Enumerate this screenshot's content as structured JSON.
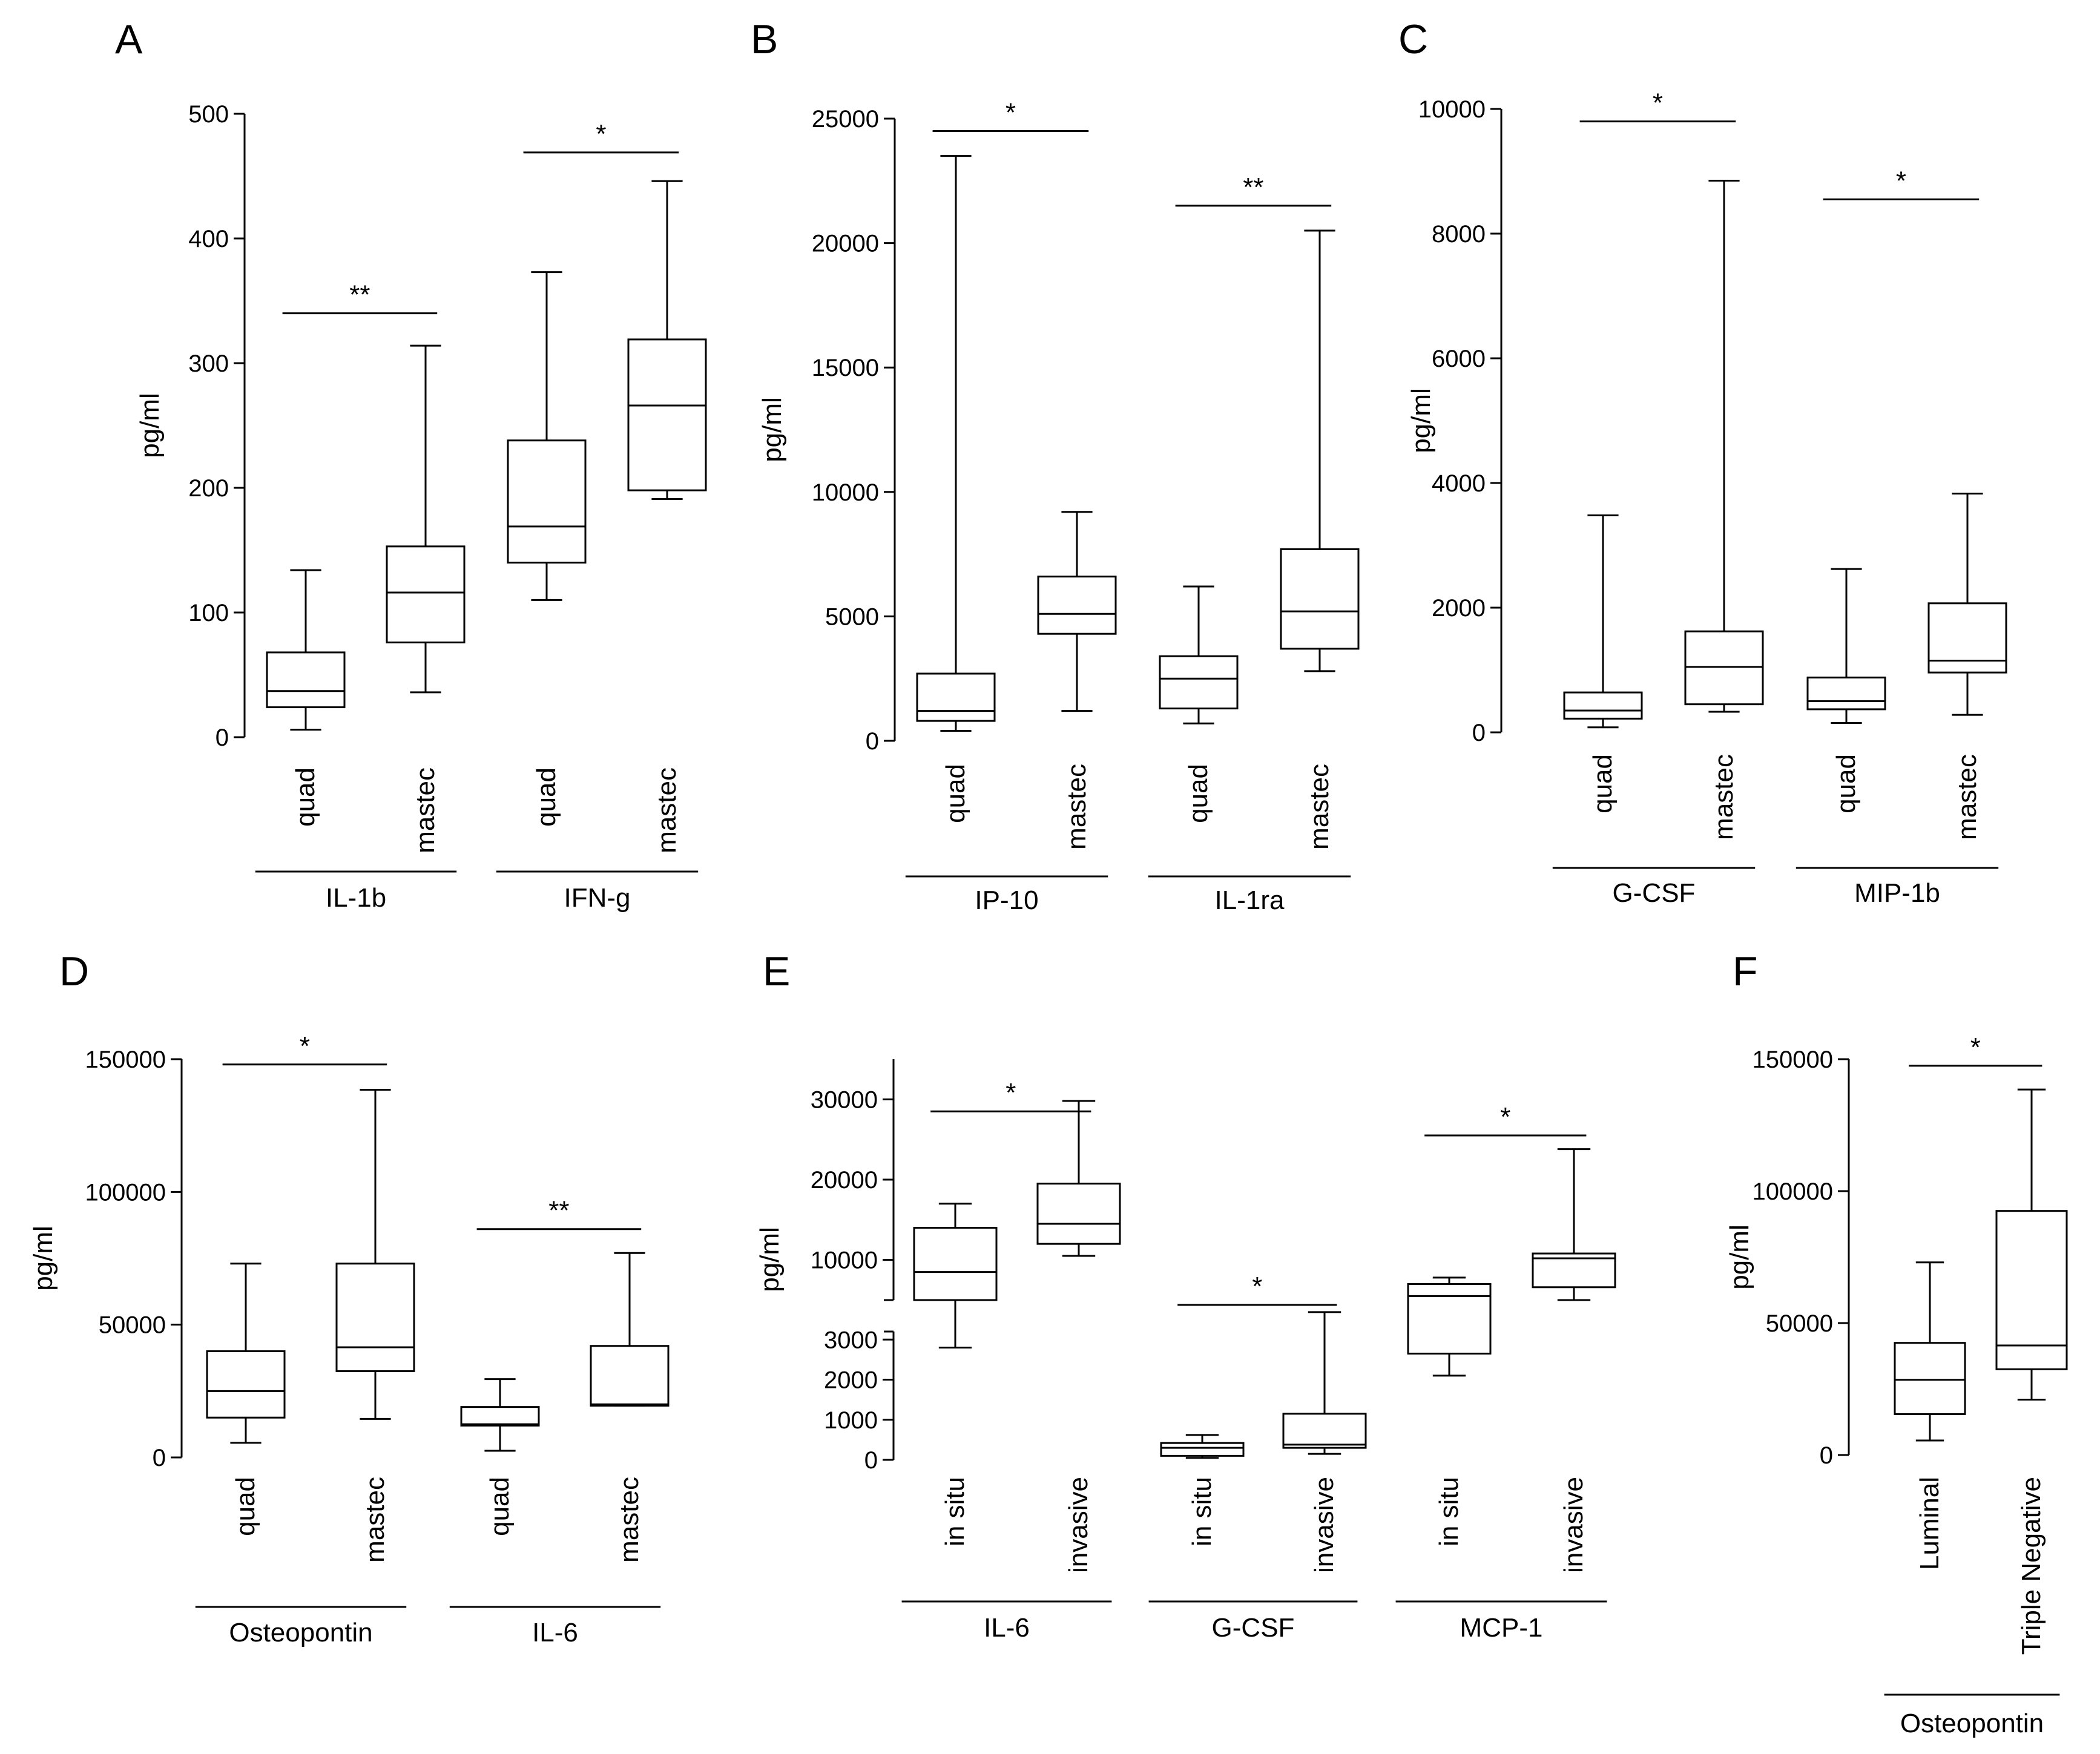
{
  "chart_data": [
    {
      "panel": "A",
      "type": "box",
      "ylabel": "pg/ml",
      "ylim": [
        0,
        500
      ],
      "yticks": [
        "0",
        "100",
        "200",
        "300",
        "400",
        "500"
      ],
      "break": false,
      "boxes": [
        {
          "label": "quad",
          "min": 6,
          "q1": 24,
          "median": 37,
          "q3": 68,
          "max": 134
        },
        {
          "label": "mastec",
          "min": 36,
          "q1": 76,
          "median": 116,
          "q3": 153,
          "max": 314
        },
        {
          "label": "quad",
          "min": 110,
          "q1": 140,
          "median": 169,
          "q3": 238,
          "max": 373
        },
        {
          "label": "mastec",
          "min": 191,
          "q1": 198,
          "median": 266,
          "q3": 319,
          "max": 446
        }
      ],
      "groups": [
        {
          "label": "IL-1b",
          "from": 0,
          "to": 1
        },
        {
          "label": "IFN-g",
          "from": 2,
          "to": 3
        }
      ],
      "significance": [
        {
          "from": 0,
          "to": 1,
          "text": "**",
          "level": 340
        },
        {
          "from": 2,
          "to": 3,
          "text": "*",
          "level": 469
        }
      ]
    },
    {
      "panel": "B",
      "type": "box",
      "ylabel": "pg/ml",
      "ylim": [
        0,
        25000
      ],
      "yticks": [
        "0",
        "5000",
        "10000",
        "15000",
        "20000",
        "25000"
      ],
      "break": false,
      "boxes": [
        {
          "label": "quad",
          "min": 400,
          "q1": 800,
          "median": 1200,
          "q3": 2700,
          "max": 23500
        },
        {
          "label": "mastec",
          "min": 1200,
          "q1": 4300,
          "median": 5100,
          "q3": 6600,
          "max": 9200
        },
        {
          "label": "quad",
          "min": 700,
          "q1": 1300,
          "median": 2500,
          "q3": 3400,
          "max": 6200
        },
        {
          "label": "mastec",
          "min": 2800,
          "q1": 3700,
          "median": 5200,
          "q3": 7700,
          "max": 20500
        }
      ],
      "groups": [
        {
          "label": "IP-10",
          "from": 0,
          "to": 1
        },
        {
          "label": "IL-1ra",
          "from": 2,
          "to": 3
        }
      ],
      "significance": [
        {
          "from": 0,
          "to": 1,
          "text": "*",
          "level": 24500
        },
        {
          "from": 2,
          "to": 3,
          "text": "**",
          "level": 21500
        }
      ]
    },
    {
      "panel": "C",
      "type": "box",
      "ylabel": "pg/ml",
      "ylim": [
        0,
        10000
      ],
      "yticks": [
        "0",
        "2000",
        "4000",
        "6000",
        "8000",
        "10000"
      ],
      "break": false,
      "boxes": [
        {
          "label": "quad",
          "min": 80,
          "q1": 220,
          "median": 350,
          "q3": 640,
          "max": 3480
        },
        {
          "label": "mastec",
          "min": 330,
          "q1": 450,
          "median": 1050,
          "q3": 1620,
          "max": 8850
        },
        {
          "label": "quad",
          "min": 150,
          "q1": 370,
          "median": 500,
          "q3": 880,
          "max": 2620
        },
        {
          "label": "mastec",
          "min": 280,
          "q1": 960,
          "median": 1150,
          "q3": 2070,
          "max": 3830
        }
      ],
      "groups": [
        {
          "label": "G-CSF",
          "from": 0,
          "to": 1
        },
        {
          "label": "MIP-1b",
          "from": 2,
          "to": 3
        }
      ],
      "significance": [
        {
          "from": 0,
          "to": 1,
          "text": "*",
          "level": 9800
        },
        {
          "from": 2,
          "to": 3,
          "text": "*",
          "level": 8550
        }
      ]
    },
    {
      "panel": "D",
      "type": "box",
      "ylabel": "pg/ml",
      "ylim": [
        0,
        150000
      ],
      "yticks": [
        "0",
        "50000",
        "100000",
        "150000"
      ],
      "break": false,
      "boxes": [
        {
          "label": "quad",
          "min": 5500,
          "q1": 15000,
          "median": 25000,
          "q3": 40000,
          "max": 73000
        },
        {
          "label": "mastec",
          "min": 14500,
          "q1": 32500,
          "median": 41500,
          "q3": 73000,
          "max": 138500
        },
        {
          "label": "quad",
          "min": 2500,
          "q1": 12000,
          "median": 12500,
          "q3": 19000,
          "max": 29500
        },
        {
          "label": "mastec",
          "min": 19500,
          "q1": 19500,
          "median": 20000,
          "q3": 42000,
          "max": 77000
        }
      ],
      "groups": [
        {
          "label": "Osteopontin",
          "from": 0,
          "to": 1
        },
        {
          "label": "IL-6",
          "from": 2,
          "to": 3
        }
      ],
      "significance": [
        {
          "from": 0,
          "to": 1,
          "text": "*",
          "level": 148000
        },
        {
          "from": 2,
          "to": 3,
          "text": "**",
          "level": 86000
        }
      ]
    },
    {
      "panel": "E",
      "type": "box",
      "ylabel": "pg/ml",
      "ylim": [
        0,
        35000
      ],
      "yticks": [
        "0",
        "1000",
        "2000",
        "3000",
        "10000",
        "20000",
        "30000"
      ],
      "break": true,
      "break_lower": [
        0,
        3200
      ],
      "break_upper": [
        5000,
        35000
      ],
      "boxes": [
        {
          "label": "in situ",
          "min": 2800,
          "q1": 5000,
          "median": 8500,
          "q3": 14000,
          "max": 17000
        },
        {
          "label": "invasive",
          "min": 10500,
          "q1": 12000,
          "median": 14500,
          "q3": 19500,
          "max": 29800
        },
        {
          "label": "in situ",
          "min": 50,
          "q1": 100,
          "median": 300,
          "q3": 420,
          "max": 620
        },
        {
          "label": "invasive",
          "min": 150,
          "q1": 300,
          "median": 380,
          "q3": 1150,
          "max": 3500
        },
        {
          "label": "in situ",
          "min": 2100,
          "q1": 2650,
          "median": 5500,
          "q3": 7000,
          "max": 7800
        },
        {
          "label": "invasive",
          "min": 5000,
          "q1": 6600,
          "median": 10200,
          "q3": 10800,
          "max": 23800
        }
      ],
      "groups": [
        {
          "label": "IL-6",
          "from": 0,
          "to": 1
        },
        {
          "label": "G-CSF",
          "from": 2,
          "to": 3
        },
        {
          "label": "MCP-1",
          "from": 4,
          "to": 5
        }
      ],
      "significance": [
        {
          "from": 0,
          "to": 1,
          "text": "*",
          "level": 28500
        },
        {
          "from": 2,
          "to": 3,
          "text": "*",
          "level": 4400
        },
        {
          "from": 4,
          "to": 5,
          "text": "*",
          "level": 25500
        }
      ]
    },
    {
      "panel": "F",
      "type": "box",
      "ylabel": "pg/ml",
      "ylim": [
        0,
        150000
      ],
      "yticks": [
        "0",
        "50000",
        "100000",
        "150000"
      ],
      "break": false,
      "boxes": [
        {
          "label": "Luminal",
          "min": 5500,
          "q1": 15500,
          "median": 28500,
          "q3": 42500,
          "max": 73000
        },
        {
          "label": "Triple Negative",
          "min": 21000,
          "q1": 32500,
          "median": 41500,
          "q3": 92500,
          "max": 138500
        }
      ],
      "groups": [
        {
          "label": "Osteopontin",
          "from": 0,
          "to": 1
        }
      ],
      "significance": [
        {
          "from": 0,
          "to": 1,
          "text": "*",
          "level": 147500
        }
      ]
    }
  ]
}
